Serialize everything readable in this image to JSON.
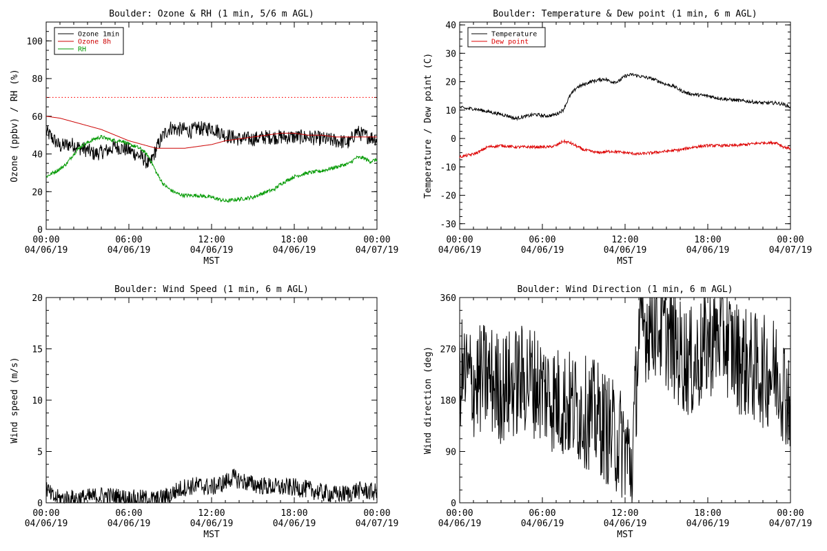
{
  "chart_data": [
    {
      "type": "line",
      "title": "Boulder: Ozone & RH (1 min, 5/6 m AGL)",
      "xlabel": "MST",
      "ylabel": "Ozone (ppbv) / RH (%)",
      "x_ticks": [
        {
          "time": "00:00",
          "date": "04/06/19"
        },
        {
          "time": "06:00",
          "date": "04/06/19"
        },
        {
          "time": "12:00",
          "date": "04/06/19"
        },
        {
          "time": "18:00",
          "date": "04/06/19"
        },
        {
          "time": "00:00",
          "date": "04/07/19"
        }
      ],
      "xlim": [
        0,
        24
      ],
      "ylim": [
        0,
        110
      ],
      "y_ticks": [
        0,
        20,
        40,
        60,
        80,
        100
      ],
      "reference_line": {
        "y": 70,
        "color": "#ff0000",
        "style": "dotted"
      },
      "legend": {
        "position": "top-left"
      },
      "series": [
        {
          "name": "Ozone 1min",
          "color": "#000000",
          "noise": 4,
          "x": [
            0,
            0.5,
            1,
            1.5,
            2,
            2.5,
            3,
            3.5,
            4,
            4.5,
            5,
            5.5,
            6,
            6.5,
            7,
            7.5,
            8,
            8.5,
            9,
            9.5,
            10,
            10.5,
            11,
            11.5,
            12,
            12.5,
            13,
            14,
            15,
            16,
            17,
            18,
            19,
            20,
            21,
            22,
            22.5,
            23,
            23.5,
            24
          ],
          "y": [
            52,
            48,
            44,
            45,
            45,
            43,
            42,
            40,
            41,
            42,
            44,
            43,
            42,
            40,
            38,
            34,
            43,
            50,
            54,
            53,
            53,
            52,
            54,
            53,
            54,
            52,
            50,
            48,
            48,
            49,
            49,
            49,
            49,
            48,
            47,
            46,
            52,
            50,
            49,
            48
          ]
        },
        {
          "name": "Ozone 8h",
          "color": "#cc0000",
          "noise": 0,
          "x": [
            0,
            1,
            2,
            3,
            4,
            5,
            6,
            7,
            8,
            9,
            10,
            11,
            12,
            13,
            14,
            15,
            16,
            17,
            18,
            19,
            20,
            21,
            22,
            23,
            24
          ],
          "y": [
            60,
            59,
            57,
            55,
            53,
            50,
            47,
            45,
            43,
            43,
            43,
            44,
            45,
            47,
            48,
            49,
            50,
            51,
            51,
            50,
            50,
            49,
            49,
            49,
            49
          ]
        },
        {
          "name": "RH",
          "color": "#009900",
          "noise": 1,
          "x": [
            0,
            0.5,
            1,
            1.5,
            2,
            2.5,
            3,
            3.5,
            4,
            4.5,
            5,
            5.5,
            6,
            6.5,
            7,
            7.5,
            8,
            8.5,
            9,
            9.5,
            10,
            11,
            12,
            13,
            14,
            15,
            16,
            16.5,
            17,
            18,
            19,
            20,
            21,
            22,
            22.5,
            23,
            23.5,
            24
          ],
          "y": [
            28,
            30,
            32,
            35,
            40,
            44,
            46,
            48,
            49,
            48,
            47,
            47,
            45,
            44,
            42,
            38,
            30,
            24,
            21,
            19,
            18,
            18,
            17,
            15,
            16,
            17,
            20,
            21,
            24,
            28,
            30,
            31,
            33,
            35,
            38,
            38,
            36,
            37
          ]
        }
      ]
    },
    {
      "type": "line",
      "title": "Boulder: Temperature & Dew point (1 min, 6 m AGL)",
      "xlabel": "MST",
      "ylabel": "Temperature / Dew point (C)",
      "x_ticks": [
        {
          "time": "00:00",
          "date": "04/06/19"
        },
        {
          "time": "06:00",
          "date": "04/06/19"
        },
        {
          "time": "12:00",
          "date": "04/06/19"
        },
        {
          "time": "18:00",
          "date": "04/06/19"
        },
        {
          "time": "00:00",
          "date": "04/07/19"
        }
      ],
      "xlim": [
        0,
        24
      ],
      "ylim": [
        -32,
        41
      ],
      "y_ticks": [
        -30,
        -20,
        -10,
        0,
        10,
        20,
        30,
        40
      ],
      "legend": {
        "position": "top-left"
      },
      "series": [
        {
          "name": "Temperature",
          "color": "#000000",
          "noise": 0.6,
          "x": [
            0,
            0.5,
            1,
            1.5,
            2,
            2.5,
            3,
            3.5,
            4,
            4.5,
            5,
            5.5,
            6,
            6.5,
            7,
            7.5,
            8,
            8.5,
            9,
            9.5,
            10,
            10.5,
            11,
            11.5,
            12,
            12.5,
            13,
            13.5,
            14,
            14.5,
            15,
            15.5,
            16,
            16.5,
            17,
            18,
            19,
            20,
            21,
            22,
            23,
            23.5,
            24
          ],
          "y": [
            11,
            10.5,
            10.5,
            10,
            9.5,
            9,
            8.5,
            8,
            7,
            7.5,
            8,
            8.5,
            8,
            8,
            8.5,
            10,
            15,
            18,
            19,
            20,
            20.5,
            21,
            20,
            20,
            22,
            22.5,
            22,
            21.5,
            21,
            20,
            19,
            18.5,
            17,
            16,
            15.5,
            15,
            14,
            13.5,
            13,
            12.5,
            12.5,
            12,
            11
          ]
        },
        {
          "name": "Dew point",
          "color": "#dd0000",
          "noise": 0.5,
          "x": [
            0,
            0.5,
            1,
            1.5,
            2,
            3,
            4,
            5,
            6,
            6.5,
            7,
            7.5,
            8,
            9,
            10,
            11,
            12,
            13,
            14,
            15,
            16,
            17,
            18,
            19,
            20,
            21,
            22,
            23,
            23.5,
            24
          ],
          "y": [
            -6.5,
            -6,
            -5.5,
            -4.5,
            -3,
            -2.5,
            -3,
            -3,
            -3,
            -3,
            -2.5,
            -1,
            -1.5,
            -4,
            -5,
            -4.5,
            -5,
            -5.5,
            -5,
            -4.5,
            -4,
            -3,
            -2.5,
            -2.5,
            -2.5,
            -2,
            -1.5,
            -1.5,
            -3,
            -3.5
          ]
        }
      ]
    },
    {
      "type": "line",
      "title": "Boulder: Wind Speed (1 min, 6 m AGL)",
      "xlabel": "MST",
      "ylabel": "Wind speed (m/s)",
      "x_ticks": [
        {
          "time": "00:00",
          "date": "04/06/19"
        },
        {
          "time": "06:00",
          "date": "04/06/19"
        },
        {
          "time": "12:00",
          "date": "04/06/19"
        },
        {
          "time": "18:00",
          "date": "04/06/19"
        },
        {
          "time": "00:00",
          "date": "04/07/19"
        }
      ],
      "xlim": [
        0,
        24
      ],
      "ylim": [
        0,
        20
      ],
      "y_ticks": [
        0,
        5,
        10,
        15,
        20
      ],
      "series": [
        {
          "color": "#000000",
          "noise": 0.9,
          "x": [
            0,
            0.2,
            0.5,
            1,
            2,
            3,
            4,
            5,
            6,
            7,
            8,
            8.5,
            9,
            9.5,
            10,
            11,
            12,
            13,
            13.5,
            14,
            14.5,
            15,
            16,
            17,
            18,
            19,
            20,
            21,
            22,
            22.5,
            23,
            24
          ],
          "y": [
            1.5,
            1,
            0.5,
            0.4,
            0.4,
            0.5,
            0.7,
            0.6,
            0.4,
            0.4,
            0.3,
            0.5,
            0.8,
            1.2,
            1.5,
            1.7,
            1.5,
            2,
            2.5,
            2.2,
            2,
            1.8,
            1.6,
            1.5,
            1.5,
            1.3,
            1,
            0.8,
            0.9,
            1.2,
            1.2,
            1
          ]
        }
      ]
    },
    {
      "type": "line",
      "title": "Boulder: Wind Direction (1 min, 6 m AGL)",
      "xlabel": "MST",
      "ylabel": "Wind direction (deg)",
      "x_ticks": [
        {
          "time": "00:00",
          "date": "04/06/19"
        },
        {
          "time": "06:00",
          "date": "04/06/19"
        },
        {
          "time": "12:00",
          "date": "04/06/19"
        },
        {
          "time": "18:00",
          "date": "04/06/19"
        },
        {
          "time": "00:00",
          "date": "04/07/19"
        }
      ],
      "xlim": [
        0,
        24
      ],
      "ylim": [
        0,
        360
      ],
      "y_ticks": [
        0,
        90,
        180,
        270,
        360
      ],
      "series": [
        {
          "color": "#000000",
          "noise": 100,
          "x": [
            0,
            1,
            2,
            3,
            4,
            5,
            6,
            7,
            8,
            9,
            10,
            11,
            12,
            12.5,
            13,
            14,
            15,
            16,
            17,
            18,
            19,
            20,
            21,
            22,
            23,
            24
          ],
          "y": [
            230,
            210,
            220,
            200,
            210,
            220,
            200,
            180,
            170,
            160,
            150,
            120,
            100,
            60,
            300,
            320,
            300,
            260,
            240,
            280,
            300,
            260,
            240,
            230,
            230,
            180
          ]
        }
      ]
    }
  ]
}
